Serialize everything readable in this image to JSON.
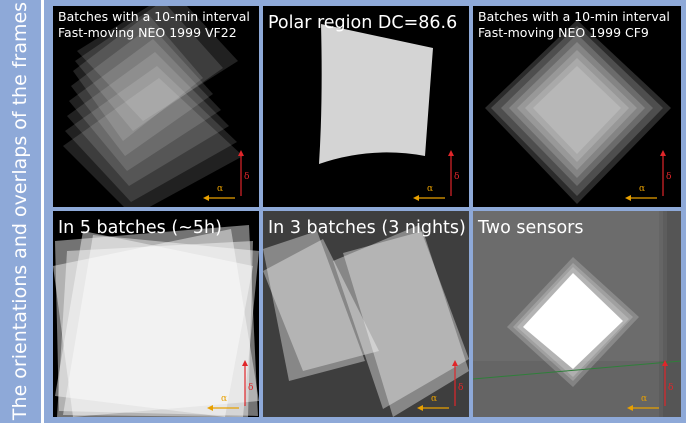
{
  "side_label": "The orientations and overlaps of the frames",
  "axes": {
    "alpha": "α",
    "delta": "δ"
  },
  "panels": [
    {
      "title_lines": [
        "Batches with a 10-min interval",
        "Fast-moving NEO 1999 VF22"
      ]
    },
    {
      "title_lines": [
        "Polar region DC=86.6"
      ]
    },
    {
      "title_lines": [
        "Batches with a 10-min interval",
        "Fast-moving NEO 1999 CF9"
      ]
    },
    {
      "title_lines": [
        "In 5 batches (~5h)"
      ]
    },
    {
      "title_lines": [
        "In 3 batches (3 nights)"
      ]
    },
    {
      "title_lines": [
        "Two sensors"
      ]
    }
  ],
  "colors": {
    "side": "#8ea9d8",
    "panel": "#000000",
    "alpha_arrow": "#e8a000",
    "delta_arrow": "#e0262a"
  }
}
